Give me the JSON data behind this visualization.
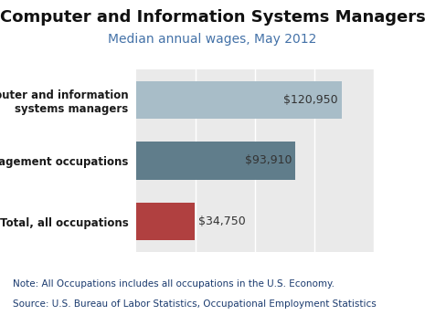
{
  "title": "Computer and Information Systems Managers",
  "subtitle": "Median annual wages, May 2012",
  "categories": [
    "Computer and information\nsystems managers",
    "Management occupations",
    "Total, all occupations"
  ],
  "values": [
    120950,
    93910,
    34750
  ],
  "labels": [
    "$120,950",
    "$93,910",
    "$34,750"
  ],
  "bar_colors": [
    "#a8bdc8",
    "#607d8b",
    "#b04040"
  ],
  "xlim": [
    0,
    140000
  ],
  "title_fontsize": 13,
  "subtitle_fontsize": 10,
  "note_text": "Note: All Occupations includes all occupations in the U.S. Economy.",
  "source_text": "Source: U.S. Bureau of Labor Statistics, Occupational Employment Statistics",
  "background_color": "#ffffff",
  "plot_bg_color": "#eaeaea",
  "note_color": "#1a3a6e",
  "subtitle_color": "#4472a8",
  "grid_color": "#ffffff",
  "label_inside_color": "#333333",
  "label_outside_color": "#333333"
}
